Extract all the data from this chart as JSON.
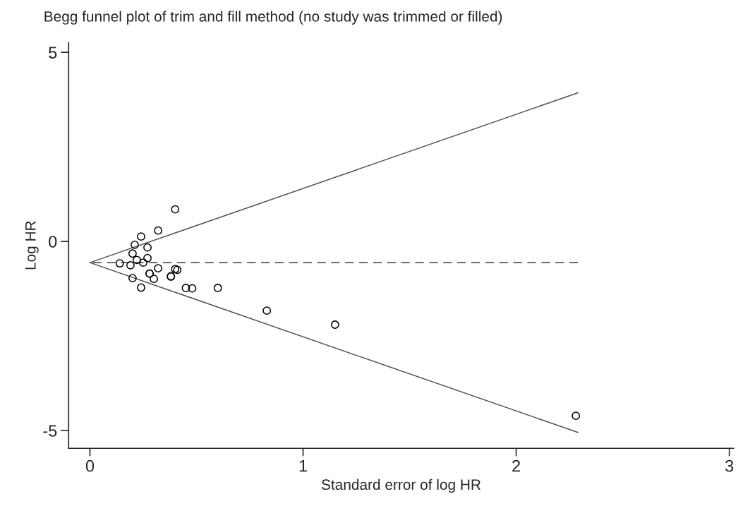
{
  "chart_data": {
    "type": "scatter",
    "title": "Begg funnel plot of trim and fill method (no study was trimmed or filled)",
    "xlabel": "Standard error of log HR",
    "ylabel": "Log HR",
    "xlim": [
      -0.1,
      3.02
    ],
    "xticks": [
      0,
      1,
      2,
      3
    ],
    "ylim": [
      -5.47,
      5.26
    ],
    "yticks": [
      -5,
      0,
      5
    ],
    "grid": false,
    "series": [
      {
        "color": "#000000",
        "marker": "circle",
        "x": [
          0.4,
          0.32,
          0.24,
          0.21,
          0.27,
          0.2,
          0.22,
          0.27,
          0.25,
          0.14,
          0.19,
          0.32,
          0.4,
          0.41,
          0.28,
          0.28,
          0.38,
          0.38,
          0.3,
          0.2,
          0.24,
          0.45,
          0.48,
          0.6,
          0.83,
          1.15,
          2.28
        ],
        "values": [
          0.85,
          0.29,
          0.13,
          -0.09,
          -0.16,
          -0.32,
          -0.49,
          -0.44,
          -0.56,
          -0.58,
          -0.63,
          -0.71,
          -0.73,
          -0.75,
          -0.85,
          -0.85,
          -0.92,
          -0.93,
          -0.99,
          -0.97,
          -1.22,
          -1.23,
          -1.24,
          -1.23,
          -1.83,
          -2.2,
          -4.61
        ]
      },
      {
        "type": "line",
        "color": "#555555",
        "line_style": "solid",
        "x": [
          0,
          2.29
        ],
        "values": [
          -0.56,
          3.93
        ]
      },
      {
        "type": "line",
        "color": "#555555",
        "line_style": "solid",
        "x": [
          0,
          2.29
        ],
        "values": [
          -0.56,
          -5.05
        ]
      },
      {
        "type": "line",
        "color": "#555555",
        "line_style": "dashed",
        "x": [
          0,
          2.29
        ],
        "values": [
          -0.56,
          -0.56
        ]
      }
    ]
  }
}
